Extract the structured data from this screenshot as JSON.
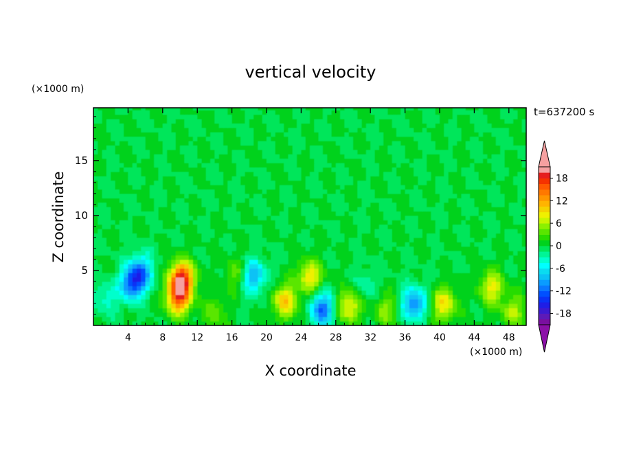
{
  "chart_data": {
    "type": "heatmap",
    "title": "vertical velocity",
    "xlabel": "X coordinate",
    "ylabel": "Z coordinate",
    "x_unit": "(×1000 m)",
    "y_unit": "(×1000 m)",
    "time_label": "t=637200 s",
    "xlim": [
      0,
      50
    ],
    "ylim": [
      0,
      19.8
    ],
    "x_ticks": [
      4,
      8,
      12,
      16,
      20,
      24,
      28,
      32,
      36,
      40,
      44,
      48
    ],
    "y_ticks": [
      5,
      10,
      15
    ],
    "colorbar": {
      "levels": [
        -21,
        -19.5,
        -18,
        -16.5,
        -15,
        -13.5,
        -12,
        -10.5,
        -9,
        -7.5,
        -6,
        -4.5,
        -3,
        -1.5,
        0,
        1.5,
        3,
        4.5,
        6,
        7.5,
        9,
        10.5,
        12,
        13.5,
        15,
        16.5,
        18,
        19.5,
        21
      ],
      "tick_labels": [
        "18",
        "12",
        "6",
        "0",
        "-6",
        "-12",
        "-18"
      ],
      "tick_values": [
        18,
        12,
        6,
        0,
        -6,
        -12,
        -18
      ],
      "colors": [
        "#7a0fa0",
        "#5d1ab8",
        "#3c1ad0",
        "#1f1ee6",
        "#0a32f5",
        "#0050ff",
        "#0a78ff",
        "#0a9cff",
        "#0ac2f5",
        "#0adcf0",
        "#00ffff",
        "#00ffcc",
        "#00f596",
        "#00e65a",
        "#00d21e",
        "#28dc00",
        "#5ae600",
        "#8cf000",
        "#c8f500",
        "#f0f000",
        "#f5d200",
        "#ffb400",
        "#ff9600",
        "#ff7800",
        "#ff5a00",
        "#f53200",
        "#e61e1e",
        "#f5a0a0"
      ],
      "over_color": "#f5a0a0",
      "under_color": "#8c10a8"
    },
    "features": [
      {
        "x": 10.2,
        "z": 4.3,
        "w": 18
      },
      {
        "x": 9.8,
        "z": 2.5,
        "w": 14
      },
      {
        "x": 22.2,
        "z": 2.2,
        "w": 10
      },
      {
        "x": 25.0,
        "z": 4.5,
        "w": 9
      },
      {
        "x": 29.5,
        "z": 1.8,
        "w": 9
      },
      {
        "x": 33.8,
        "z": 1.5,
        "w": 5
      },
      {
        "x": 40.5,
        "z": 1.9,
        "w": 9
      },
      {
        "x": 46.0,
        "z": 3.5,
        "w": 8
      },
      {
        "x": 48.5,
        "z": 1.3,
        "w": 6
      },
      {
        "x": 16.5,
        "z": 4.8,
        "w": 4
      },
      {
        "x": 14.0,
        "z": 1.2,
        "w": 4
      },
      {
        "x": 4.5,
        "z": 3.8,
        "w": -12
      },
      {
        "x": 5.5,
        "z": 5.0,
        "w": -9
      },
      {
        "x": 18.5,
        "z": 4.5,
        "w": -9
      },
      {
        "x": 26.5,
        "z": 1.5,
        "w": -12
      },
      {
        "x": 37.0,
        "z": 2.0,
        "w": -11
      },
      {
        "x": 1.5,
        "z": 2.5,
        "w": -4
      },
      {
        "x": 31.5,
        "z": 3.5,
        "w": -3
      }
    ]
  }
}
